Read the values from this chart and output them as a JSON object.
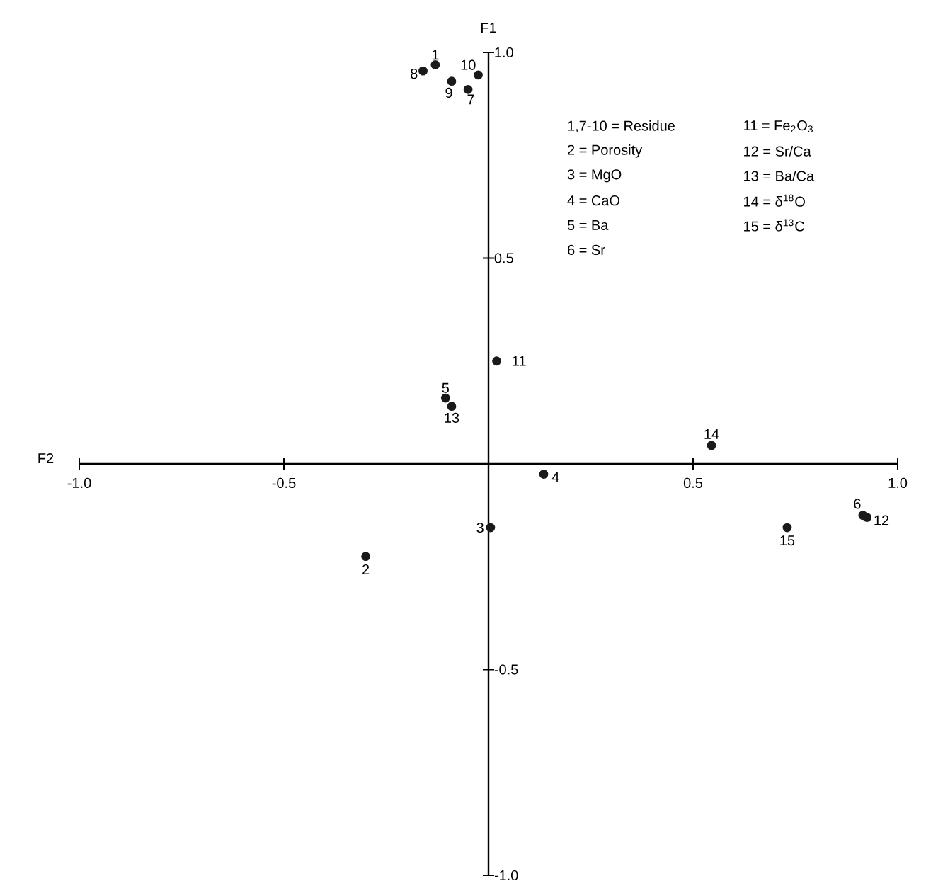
{
  "chart_data": {
    "type": "scatter",
    "xlabel": "F2",
    "ylabel": "F1",
    "x": [
      -0.13,
      -0.3,
      0.005,
      0.135,
      -0.105,
      0.915,
      -0.05,
      -0.16,
      -0.09,
      -0.025,
      0.02,
      0.925,
      -0.09,
      0.545,
      0.73
    ],
    "series": [
      {
        "color": "#1a1a1a",
        "values": [
          0.97,
          -0.225,
          -0.155,
          -0.025,
          0.16,
          -0.125,
          0.91,
          0.955,
          0.93,
          0.945,
          0.25,
          -0.13,
          0.14,
          0.045,
          -0.155
        ]
      }
    ],
    "grid": false,
    "xlim": [
      -1,
      1
    ],
    "ylim": [
      -1,
      1
    ],
    "xticks": [
      {
        "value": -1,
        "label": "-1.0"
      },
      {
        "value": -0.5,
        "label": "-0.5"
      },
      {
        "value": 0.5,
        "label": "0.5"
      },
      {
        "value": 1,
        "label": "1.0"
      }
    ],
    "yticks": [
      {
        "value": -1,
        "label": "-1.0"
      },
      {
        "value": -0.5,
        "label": "-0.5"
      },
      {
        "value": 0.5,
        "label": "0.5"
      },
      {
        "value": 1,
        "label": "1.0"
      }
    ],
    "annotations": [
      {
        "text": "1",
        "x": -0.13,
        "y": 0.97
      },
      {
        "text": "2",
        "x": -0.3,
        "y": -0.225
      },
      {
        "text": "3",
        "x": 0.005,
        "y": -0.155
      },
      {
        "text": "4",
        "x": 0.135,
        "y": -0.025
      },
      {
        "text": "5",
        "x": -0.105,
        "y": 0.16
      },
      {
        "text": "6",
        "x": 0.915,
        "y": -0.125
      },
      {
        "text": "7",
        "x": -0.05,
        "y": 0.91
      },
      {
        "text": "8",
        "x": -0.16,
        "y": 0.955
      },
      {
        "text": "9",
        "x": -0.09,
        "y": 0.93
      },
      {
        "text": "10",
        "x": -0.025,
        "y": 0.945
      },
      {
        "text": "11",
        "x": 0.02,
        "y": 0.25
      },
      {
        "text": "12",
        "x": 0.925,
        "y": -0.13
      },
      {
        "text": "13",
        "x": -0.09,
        "y": 0.14
      },
      {
        "text": "14",
        "x": 0.545,
        "y": 0.045
      },
      {
        "text": "15",
        "x": 0.73,
        "y": -0.155
      },
      "1,7-10 = Residue",
      "2 = Porosity",
      "3 = MgO",
      "4 = CaO",
      "5 = Ba",
      "6 = Sr",
      "11 = Fe$_{2}$O$_{3}$",
      "12 = Sr/Ca",
      "13 = Ba/Ca",
      "14 = δ$^{18}$O",
      "15 = δ$^{13}$C"
    ]
  }
}
